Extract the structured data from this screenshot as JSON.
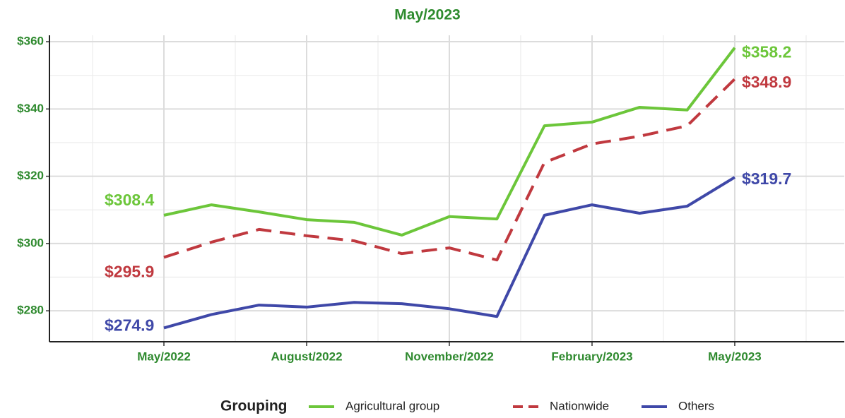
{
  "chart_data": {
    "type": "line",
    "title": "May/2023",
    "categories": [
      "May/2022",
      null,
      null,
      "August/2022",
      null,
      null,
      "November/2022",
      null,
      null,
      "February/2023",
      null,
      null,
      "May/2023"
    ],
    "series": [
      {
        "name": "Agricultural group",
        "color": "#6cc63a",
        "dash": false,
        "values": [
          308.4,
          311.5,
          309.4,
          307.1,
          306.3,
          302.5,
          308.0,
          307.3,
          335.0,
          336.1,
          340.5,
          339.7,
          358.2
        ],
        "value_labels": [
          "$308.4",
          null,
          null,
          null,
          null,
          null,
          null,
          null,
          null,
          null,
          null,
          null,
          "$358.2"
        ]
      },
      {
        "name": "Nationwide",
        "color": "#c0393f",
        "dash": true,
        "values": [
          295.9,
          300.4,
          304.2,
          302.3,
          300.8,
          297.0,
          298.7,
          295.1,
          324.1,
          329.6,
          331.9,
          335.0,
          348.9
        ],
        "value_labels": [
          "$295.9",
          null,
          null,
          null,
          null,
          null,
          null,
          null,
          null,
          null,
          null,
          null,
          "$348.9"
        ]
      },
      {
        "name": "Others",
        "color": "#3f48a8",
        "dash": false,
        "values": [
          274.9,
          278.9,
          281.7,
          281.1,
          282.5,
          282.1,
          280.6,
          278.3,
          308.4,
          311.5,
          309.0,
          311.1,
          319.7
        ],
        "value_labels": [
          "$274.9",
          null,
          null,
          null,
          null,
          null,
          null,
          null,
          null,
          null,
          null,
          null,
          "$319.7"
        ]
      }
    ],
    "ylim": [
      270.8,
      361.9
    ],
    "yticks": [
      {
        "value": 280,
        "label": "$280"
      },
      {
        "value": 300,
        "label": "$300"
      },
      {
        "value": 320,
        "label": "$320"
      },
      {
        "value": 340,
        "label": "$340"
      },
      {
        "value": 360,
        "label": "$360"
      }
    ],
    "grid": true,
    "legend_title": "Grouping",
    "legend": "bottom"
  }
}
